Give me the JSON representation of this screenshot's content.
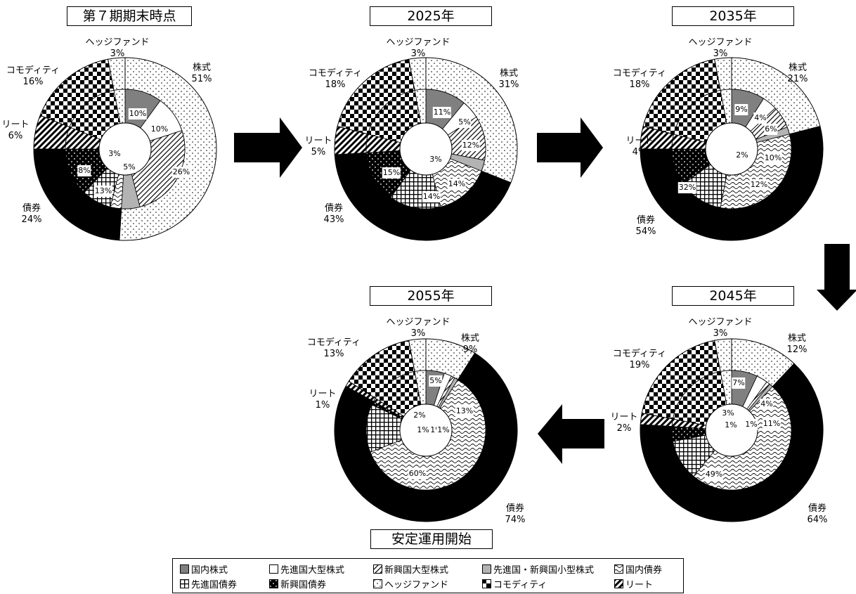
{
  "chart_data": [
    {
      "type": "pie",
      "title": "第７期期末時点",
      "outer": [
        {
          "label": "株式",
          "value": 51
        },
        {
          "label": "債券",
          "value": 24
        },
        {
          "label": "リート",
          "value": 6
        },
        {
          "label": "コモディティ",
          "value": 16
        },
        {
          "label": "ヘッジファンド",
          "value": 3
        }
      ],
      "inner": [
        {
          "series": "国内株式",
          "value": 10
        },
        {
          "series": "先進国大型株式",
          "value": 10
        },
        {
          "series": "新興国大型株式",
          "value": 26
        },
        {
          "series": "先進国・新興国小型株式",
          "value": 5
        },
        {
          "series": "国内債券",
          "value": 3
        },
        {
          "series": "先進国債券",
          "value": 8
        },
        {
          "series": "新興国債券",
          "value": 13
        },
        {
          "series": "リート",
          "value": 6
        },
        {
          "series": "コモディティ",
          "value": 16
        },
        {
          "series": "ヘッジファンド",
          "value": 3
        }
      ]
    },
    {
      "type": "pie",
      "title": "2025年",
      "outer": [
        {
          "label": "株式",
          "value": 31
        },
        {
          "label": "債券",
          "value": 43
        },
        {
          "label": "リート",
          "value": 5
        },
        {
          "label": "コモディティ",
          "value": 18
        },
        {
          "label": "ヘッジファンド",
          "value": 3
        }
      ],
      "inner": [
        {
          "series": "国内株式",
          "value": 11
        },
        {
          "series": "先進国大型株式",
          "value": 5
        },
        {
          "series": "新興国大型株式",
          "value": 12
        },
        {
          "series": "先進国・新興国小型株式",
          "value": 3
        },
        {
          "series": "国内債券",
          "value": 15
        },
        {
          "series": "先進国債券",
          "value": 14
        },
        {
          "series": "新興国債券",
          "value": 14
        },
        {
          "series": "リート",
          "value": 5
        },
        {
          "series": "コモディティ",
          "value": 18
        },
        {
          "series": "ヘッジファンド",
          "value": 3
        }
      ]
    },
    {
      "type": "pie",
      "title": "2035年",
      "outer": [
        {
          "label": "株式",
          "value": 21
        },
        {
          "label": "債券",
          "value": 54
        },
        {
          "label": "リート",
          "value": 4
        },
        {
          "label": "コモディティ",
          "value": 18
        },
        {
          "label": "ヘッジファンド",
          "value": 3
        }
      ],
      "inner": [
        {
          "series": "国内株式",
          "value": 9
        },
        {
          "series": "先進国大型株式",
          "value": 4
        },
        {
          "series": "新興国大型株式",
          "value": 6
        },
        {
          "series": "先進国・新興国小型株式",
          "value": 2
        },
        {
          "series": "国内債券",
          "value": 32
        },
        {
          "series": "先進国債券",
          "value": 12
        },
        {
          "series": "新興国債券",
          "value": 10
        },
        {
          "series": "リート",
          "value": 4
        },
        {
          "series": "コモディティ",
          "value": 18
        },
        {
          "series": "ヘッジファンド",
          "value": 3
        }
      ]
    },
    {
      "type": "pie",
      "title": "2045年",
      "outer": [
        {
          "label": "株式",
          "value": 12
        },
        {
          "label": "債券",
          "value": 64
        },
        {
          "label": "リート",
          "value": 2
        },
        {
          "label": "コモディティ",
          "value": 19
        },
        {
          "label": "ヘッジファンド",
          "value": 3
        }
      ],
      "inner": [
        {
          "series": "国内株式",
          "value": 7
        },
        {
          "series": "先進国大型株式",
          "value": 3
        },
        {
          "series": "新興国大型株式",
          "value": 1
        },
        {
          "series": "先進国・新興国小型株式",
          "value": 1
        },
        {
          "series": "国内債券",
          "value": 49
        },
        {
          "series": "先進国債券",
          "value": 11
        },
        {
          "series": "新興国債券",
          "value": 4
        },
        {
          "series": "リート",
          "value": 2
        },
        {
          "series": "コモディティ",
          "value": 19
        },
        {
          "series": "ヘッジファンド",
          "value": 3
        }
      ]
    },
    {
      "type": "pie",
      "title": "2055年",
      "outer": [
        {
          "label": "株式",
          "value": 9
        },
        {
          "label": "債券",
          "value": 74
        },
        {
          "label": "リート",
          "value": 1
        },
        {
          "label": "コモディティ",
          "value": 13
        },
        {
          "label": "ヘッジファンド",
          "value": 3
        }
      ],
      "inner": [
        {
          "series": "国内株式",
          "value": 5
        },
        {
          "series": "先進国大型株式",
          "value": 2
        },
        {
          "series": "新興国大型株式",
          "value": 1
        },
        {
          "series": "先進国・新興国小型株式",
          "value": 1
        },
        {
          "series": "国内債券",
          "value": 60
        },
        {
          "series": "先進国債券",
          "value": 13
        },
        {
          "series": "新興国債券",
          "value": 1
        },
        {
          "series": "リート",
          "value": 1
        },
        {
          "series": "コモディティ",
          "value": 13
        },
        {
          "series": "ヘッジファンド",
          "value": 3
        }
      ]
    }
  ],
  "section_label": "安定運用開始",
  "legend": [
    {
      "series": "国内株式",
      "label": "国内株式",
      "pattern": "gray"
    },
    {
      "series": "先進国大型株式",
      "label": "先進国大型株式",
      "pattern": "white"
    },
    {
      "series": "新興国大型株式",
      "label": "新興国大型株式",
      "pattern": "diag"
    },
    {
      "series": "先進国・新興国小型株式",
      "label": "先進国・新興国小型株式",
      "pattern": "lightgray"
    },
    {
      "series": "国内債券",
      "label": "国内債券",
      "pattern": "wave"
    },
    {
      "series": "先進国債券",
      "label": "先進国債券",
      "pattern": "grid"
    },
    {
      "series": "新興国債券",
      "label": "新興国債券",
      "pattern": "blackdots"
    },
    {
      "series": "ヘッジファンド",
      "label": "ヘッジファンド",
      "pattern": "dots"
    },
    {
      "series": "コモディティ",
      "label": "コモディティ",
      "pattern": "checker"
    },
    {
      "series": "リート",
      "label": "リート",
      "pattern": "stripes"
    }
  ],
  "colors": {
    "domestic_stock": "#808080",
    "small_cap": "#b3b3b3",
    "bond_black": "#000000"
  }
}
